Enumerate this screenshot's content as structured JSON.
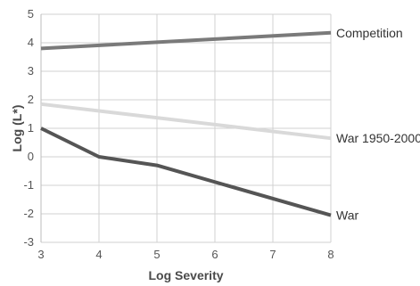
{
  "chart_data": {
    "type": "line",
    "xlabel": "Log Severity",
    "ylabel": "Log (L*)",
    "xlim": [
      3,
      8
    ],
    "ylim": [
      -3,
      5
    ],
    "x_ticks": [
      "3",
      "4",
      "5",
      "6",
      "7",
      "8"
    ],
    "y_ticks": [
      "5",
      "4",
      "3",
      "2",
      "1",
      "0",
      "-1",
      "-2",
      "-3"
    ],
    "grid": "horizontal",
    "legend": "inline-right",
    "series": [
      {
        "name": "Competition",
        "color": "#7a7a7a",
        "x": [
          3,
          8
        ],
        "y": [
          3.8,
          4.35
        ]
      },
      {
        "name": "War 1950-2000",
        "color": "#d9d9d9",
        "x": [
          3,
          8
        ],
        "y": [
          1.85,
          0.65
        ]
      },
      {
        "name": "War",
        "color": "#555555",
        "x": [
          3,
          4,
          5,
          8
        ],
        "y": [
          1.0,
          0.0,
          -0.3,
          -2.05
        ]
      }
    ]
  }
}
